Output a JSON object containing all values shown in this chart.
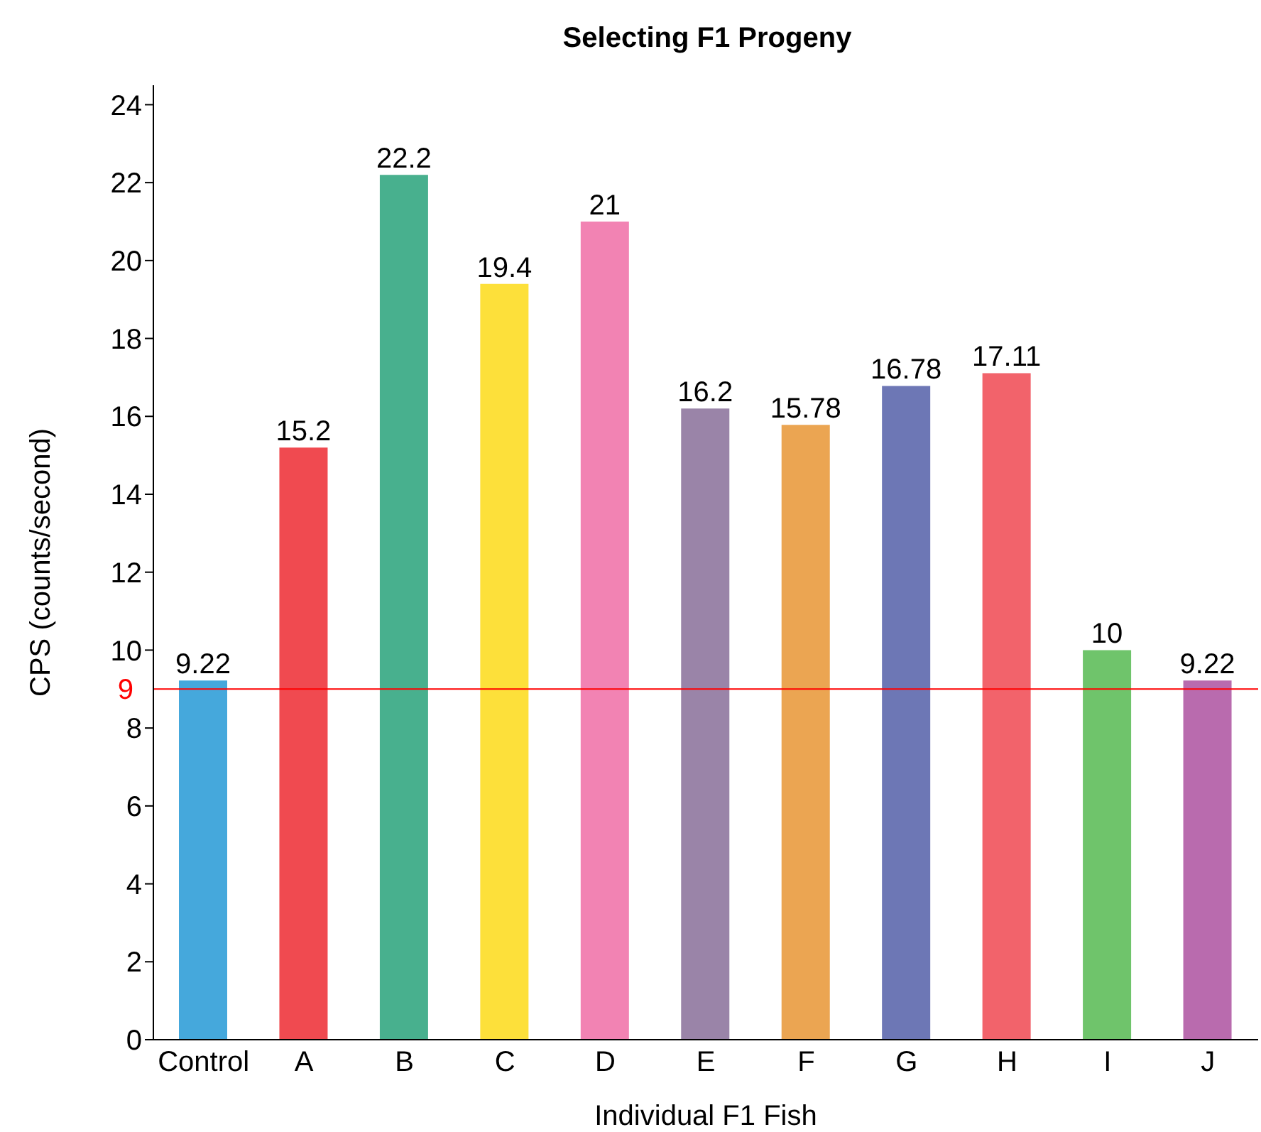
{
  "chart_data": {
    "type": "bar",
    "title": "Selecting F1 Progeny",
    "xlabel": "Individual F1 Fish",
    "ylabel": "CPS (counts/second)",
    "categories": [
      "Control",
      "A",
      "B",
      "C",
      "D",
      "E",
      "F",
      "G",
      "H",
      "I",
      "J"
    ],
    "values": [
      9.22,
      15.2,
      22.2,
      19.4,
      21,
      16.2,
      15.78,
      16.78,
      17.11,
      10,
      9.22
    ],
    "colors": [
      "#45a8dc",
      "#f04a50",
      "#48b08e",
      "#fde03a",
      "#f283b3",
      "#9a84a8",
      "#eba552",
      "#6d77b5",
      "#f2636b",
      "#6fc46b",
      "#b96bae"
    ],
    "ylim": [
      0,
      24.5
    ],
    "yticks": [
      0,
      2,
      4,
      6,
      8,
      10,
      12,
      14,
      16,
      18,
      20,
      22,
      24
    ],
    "data_labels": true,
    "grid": false,
    "legend": false,
    "ref_lines": [
      {
        "axis": "y",
        "value": 9,
        "label": "9",
        "color": "#ff0000"
      }
    ]
  }
}
